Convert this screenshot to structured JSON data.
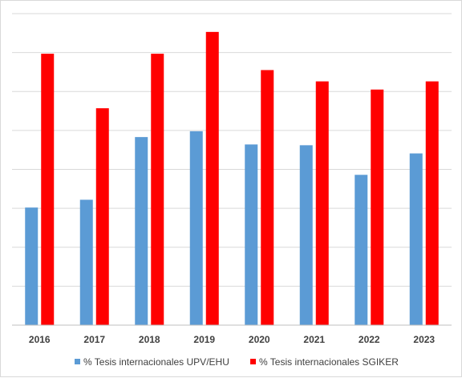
{
  "chart_data": {
    "type": "bar",
    "categories": [
      "2016",
      "2017",
      "2018",
      "2019",
      "2020",
      "2021",
      "2022",
      "2023"
    ],
    "series": [
      {
        "name": "% Tesis internacionales UPV/EHU",
        "color": "#5b9bd5",
        "values": [
          30.2,
          32.2,
          48.3,
          49.8,
          46.4,
          46.2,
          38.6,
          44.1
        ]
      },
      {
        "name": "% Tesis internacionales SGIKER",
        "color": "#ff0000",
        "values": [
          69.7,
          55.7,
          69.7,
          75.3,
          65.5,
          62.6,
          60.5,
          62.6
        ]
      }
    ],
    "ylim": [
      0,
      80
    ],
    "grid": true,
    "legend_position": "bottom"
  }
}
